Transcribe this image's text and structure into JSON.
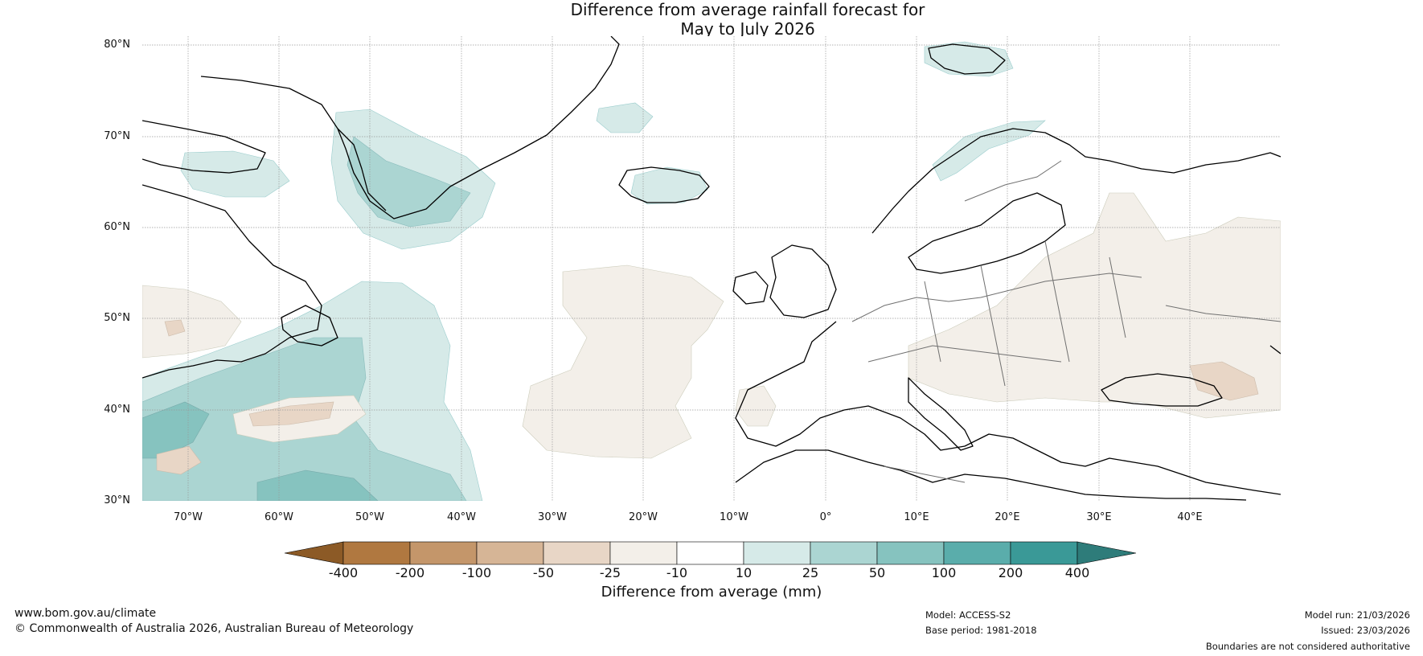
{
  "title": {
    "line1": "Difference from average rainfall forecast for",
    "line2": "May to July 2026"
  },
  "map": {
    "lat_labels": [
      "80°N",
      "70°N",
      "60°N",
      "50°N",
      "40°N",
      "30°N"
    ],
    "lon_labels": [
      "70°W",
      "60°W",
      "50°W",
      "40°W",
      "30°W",
      "20°W",
      "10°W",
      "0°",
      "10°E",
      "20°E",
      "30°E",
      "40°E"
    ],
    "lat_range": [
      30,
      81
    ],
    "lon_range": [
      -75,
      50
    ],
    "colors": {
      "land_line": "#000000",
      "border_line": "#707070",
      "grid": "#999999"
    },
    "regions": [
      {
        "name": "greenland-south-wet",
        "category": "10 to 25"
      },
      {
        "name": "greenland-east-wet",
        "category": "25 to 50"
      },
      {
        "name": "labrador-sea-wet",
        "category": "10 to 25"
      },
      {
        "name": "atlantic-nw-wet",
        "category": "25 to 50"
      },
      {
        "name": "atlantic-sw-wet",
        "category": "50 to 100"
      },
      {
        "name": "mid-atlantic-dry",
        "category": "-10 to -25"
      },
      {
        "name": "eastern-europe-dry",
        "category": "-10 to -25"
      },
      {
        "name": "black-sea-dry",
        "category": "-25 to -50"
      },
      {
        "name": "norway-wet",
        "category": "10 to 25"
      },
      {
        "name": "iceland-wet",
        "category": "10 to 25"
      },
      {
        "name": "svalbard-wet",
        "category": "10 to 25"
      }
    ]
  },
  "colorbar": {
    "ticks": [
      "-400",
      "-200",
      "-100",
      "-50",
      "-25",
      "-10",
      "10",
      "25",
      "50",
      "100",
      "200",
      "400"
    ],
    "colors": [
      "#8c5a26",
      "#b07840",
      "#c4966a",
      "#d6b596",
      "#e8d6c6",
      "#f3efe9",
      "#ffffff",
      "#d6eae8",
      "#abd5d2",
      "#86c3bf",
      "#5aadab",
      "#3a9997",
      "#2e7c7a"
    ],
    "title": "Difference from average (mm)"
  },
  "footer": {
    "website": "www.bom.gov.au/climate",
    "copyright": "© Commonwealth of Australia 2026, Australian Bureau of Meteorology",
    "model": "Model: ACCESS-S2",
    "base_period": "Base period: 1981-2018",
    "model_run": "Model run: 21/03/2026",
    "issued": "Issued: 23/03/2026",
    "disclaimer": "Boundaries are not considered authoritative"
  }
}
